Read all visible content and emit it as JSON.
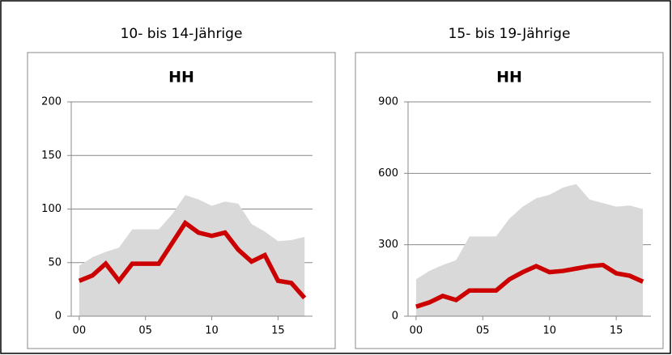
{
  "chart_data": [
    {
      "type": "line",
      "caption": "10- bis 14-Jährige",
      "title": "HH",
      "x": [
        0,
        1,
        2,
        3,
        4,
        5,
        6,
        7,
        8,
        9,
        10,
        11,
        12,
        13,
        14,
        15,
        16,
        17
      ],
      "series": [
        {
          "style": "area",
          "color": "#d9d9d9",
          "values": [
            47,
            55,
            60,
            64,
            81,
            81,
            81,
            95,
            113,
            109,
            103,
            107,
            105,
            86,
            79,
            70,
            71,
            74
          ]
        },
        {
          "style": "line",
          "color": "#cc0000",
          "values": [
            33,
            38,
            49,
            33,
            49,
            49,
            49,
            68,
            87,
            78,
            75,
            78,
            62,
            51,
            57,
            33,
            31,
            17
          ]
        }
      ],
      "xlim": [
        -0.6,
        17.6
      ],
      "xticks": [
        {
          "value": 0,
          "label": "00"
        },
        {
          "value": 5,
          "label": "05"
        },
        10,
        15
      ],
      "ylim": [
        0,
        200
      ],
      "yticks": [
        0,
        50,
        100,
        150,
        200
      ],
      "grid": true
    },
    {
      "type": "line",
      "caption": "15- bis 19-Jährige",
      "title": "HH",
      "x": [
        0,
        1,
        2,
        3,
        4,
        5,
        6,
        7,
        8,
        9,
        10,
        11,
        12,
        13,
        14,
        15,
        16,
        17
      ],
      "series": [
        {
          "style": "area",
          "color": "#d9d9d9",
          "values": [
            155,
            190,
            215,
            235,
            335,
            335,
            335,
            410,
            460,
            495,
            510,
            540,
            555,
            490,
            475,
            460,
            465,
            450
          ]
        },
        {
          "style": "line",
          "color": "#cc0000",
          "values": [
            40,
            58,
            85,
            68,
            108,
            108,
            108,
            155,
            185,
            210,
            185,
            190,
            200,
            210,
            215,
            180,
            170,
            145
          ]
        }
      ],
      "xlim": [
        -0.6,
        17.6
      ],
      "xticks": [
        {
          "value": 0,
          "label": "00"
        },
        {
          "value": 5,
          "label": "05"
        },
        10,
        15
      ],
      "ylim": [
        0,
        900
      ],
      "yticks": [
        0,
        300,
        600,
        900
      ],
      "grid": true
    }
  ]
}
